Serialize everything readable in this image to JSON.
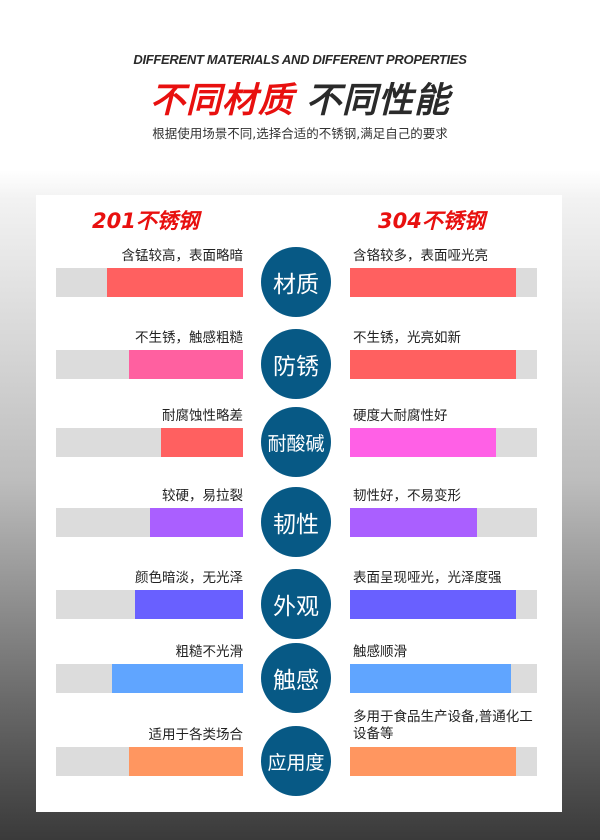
{
  "header": {
    "english_title": "DIFFERENT MATERIALS AND DIFFERENT PROPERTIES",
    "title_red": "不同材质",
    "title_dark": "不同性能",
    "subtitle": "根据使用场景不同,选择合适的不锈钢,满足自己的要求"
  },
  "columns": {
    "left": "201不锈钢",
    "right": "304不锈钢"
  },
  "rows": [
    {
      "category": "材质",
      "left_text": "含锰较高，表面略暗",
      "left_level": 0.73,
      "left_color": "#ff6060",
      "right_text": "含铬较多，表面哑光亮",
      "right_level": 0.89,
      "right_color": "#ff6060"
    },
    {
      "category": "防锈",
      "left_text": "不生锈，触感粗糙",
      "left_level": 0.61,
      "left_color": "#ff60a0",
      "right_text": "不生锈，光亮如新",
      "right_level": 0.89,
      "right_color": "#ff6060"
    },
    {
      "category": "耐酸碱",
      "left_text": "耐腐蚀性略差",
      "left_level": 0.44,
      "left_color": "#ff6060",
      "right_text": "硬度大耐腐性好",
      "right_level": 0.78,
      "right_color": "#ff60e6"
    },
    {
      "category": "韧性",
      "left_text": "较硬，易拉裂",
      "left_level": 0.5,
      "left_color": "#aa5fff",
      "right_text": "韧性好，不易变形",
      "right_level": 0.68,
      "right_color": "#aa5fff"
    },
    {
      "category": "外观",
      "left_text": "颜色暗淡，无光泽",
      "left_level": 0.58,
      "left_color": "#6960ff",
      "right_text": "表面呈现哑光，光泽度强",
      "right_level": 0.89,
      "right_color": "#6960ff"
    },
    {
      "category": "触感",
      "left_text": "粗糙不光滑",
      "left_level": 0.7,
      "left_color": "#60a5ff",
      "right_text": "触感顺滑",
      "right_level": 0.86,
      "right_color": "#60a5ff"
    },
    {
      "category": "应用度",
      "left_text": "适用于各类场合",
      "left_level": 0.61,
      "left_color": "#ff9660",
      "right_text": "多用于食品生产设备,普通化工设备等",
      "right_level": 0.89,
      "right_color": "#ff9660"
    }
  ],
  "colors": {
    "circle": "#075985",
    "title_red": "#e8100f",
    "track": "#dcdcdc"
  }
}
